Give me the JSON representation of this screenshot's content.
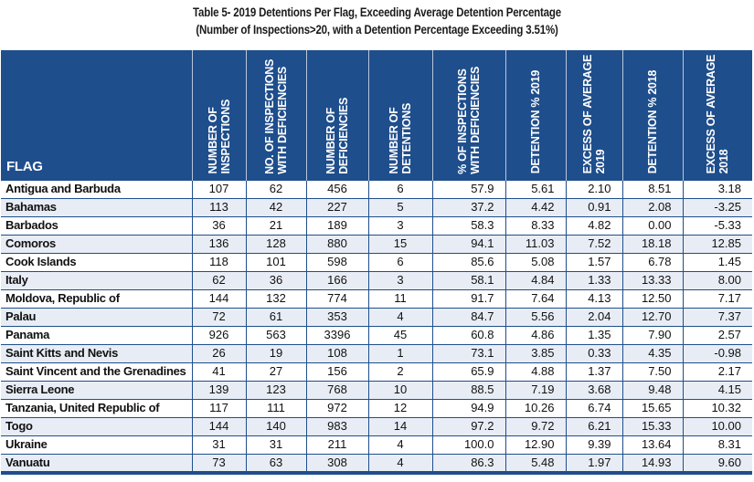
{
  "title_line1": "Table 5- 2019 Detentions Per Flag, Exceeding Average Detention Percentage",
  "title_line2": "(Number of Inspections>20, with a Detention Percentage Exceeding 3.51%)",
  "headers": {
    "flag": "FLAG",
    "inspections": "NUMBER OF\nINSPECTIONS",
    "insp_deficiencies": "NO. OF INSPECTIONS\nWITH DEFICIENCIES",
    "deficiencies": "NUMBER OF\nDEFICIENCIES",
    "detentions": "NUMBER OF\nDETENTIONS",
    "pct_deficiencies": "% OF INSPECTIONS\nWITH DEFICIENCIES",
    "det2019": "DETENTION % 2019",
    "excess2019": "EXCESS OF AVERAGE\n2019",
    "det2018": "DETENTION % 2018",
    "excess2018": "EXCESS OF AVERAGE\n2018"
  },
  "rows": [
    {
      "flag": "Antigua and Barbuda",
      "inspections": "107",
      "insp_deficiencies": "62",
      "deficiencies": "456",
      "detentions": "6",
      "pct_deficiencies": "57.9",
      "det2019": "5.61",
      "excess2019": "2.10",
      "det2018": "8.51",
      "excess2018": "3.18"
    },
    {
      "flag": "Bahamas",
      "inspections": "113",
      "insp_deficiencies": "42",
      "deficiencies": "227",
      "detentions": "5",
      "pct_deficiencies": "37.2",
      "det2019": "4.42",
      "excess2019": "0.91",
      "det2018": "2.08",
      "excess2018": "-3.25"
    },
    {
      "flag": "Barbados",
      "inspections": "36",
      "insp_deficiencies": "21",
      "deficiencies": "189",
      "detentions": "3",
      "pct_deficiencies": "58.3",
      "det2019": "8.33",
      "excess2019": "4.82",
      "det2018": "0.00",
      "excess2018": "-5.33"
    },
    {
      "flag": "Comoros",
      "inspections": "136",
      "insp_deficiencies": "128",
      "deficiencies": "880",
      "detentions": "15",
      "pct_deficiencies": "94.1",
      "det2019": "11.03",
      "excess2019": "7.52",
      "det2018": "18.18",
      "excess2018": "12.85"
    },
    {
      "flag": "Cook Islands",
      "inspections": "118",
      "insp_deficiencies": "101",
      "deficiencies": "598",
      "detentions": "6",
      "pct_deficiencies": "85.6",
      "det2019": "5.08",
      "excess2019": "1.57",
      "det2018": "6.78",
      "excess2018": "1.45"
    },
    {
      "flag": "Italy",
      "inspections": "62",
      "insp_deficiencies": "36",
      "deficiencies": "166",
      "detentions": "3",
      "pct_deficiencies": "58.1",
      "det2019": "4.84",
      "excess2019": "1.33",
      "det2018": "13.33",
      "excess2018": "8.00"
    },
    {
      "flag": "Moldova, Republic of",
      "inspections": "144",
      "insp_deficiencies": "132",
      "deficiencies": "774",
      "detentions": "11",
      "pct_deficiencies": "91.7",
      "det2019": "7.64",
      "excess2019": "4.13",
      "det2018": "12.50",
      "excess2018": "7.17"
    },
    {
      "flag": "Palau",
      "inspections": "72",
      "insp_deficiencies": "61",
      "deficiencies": "353",
      "detentions": "4",
      "pct_deficiencies": "84.7",
      "det2019": "5.56",
      "excess2019": "2.04",
      "det2018": "12.70",
      "excess2018": "7.37"
    },
    {
      "flag": "Panama",
      "inspections": "926",
      "insp_deficiencies": "563",
      "deficiencies": "3396",
      "detentions": "45",
      "pct_deficiencies": "60.8",
      "det2019": "4.86",
      "excess2019": "1.35",
      "det2018": "7.90",
      "excess2018": "2.57"
    },
    {
      "flag": "Saint Kitts and Nevis",
      "inspections": "26",
      "insp_deficiencies": "19",
      "deficiencies": "108",
      "detentions": "1",
      "pct_deficiencies": "73.1",
      "det2019": "3.85",
      "excess2019": "0.33",
      "det2018": "4.35",
      "excess2018": "-0.98"
    },
    {
      "flag": "Saint Vincent and the Grenadines",
      "inspections": "41",
      "insp_deficiencies": "27",
      "deficiencies": "156",
      "detentions": "2",
      "pct_deficiencies": "65.9",
      "det2019": "4.88",
      "excess2019": "1.37",
      "det2018": "7.50",
      "excess2018": "2.17"
    },
    {
      "flag": "Sierra Leone",
      "inspections": "139",
      "insp_deficiencies": "123",
      "deficiencies": "768",
      "detentions": "10",
      "pct_deficiencies": "88.5",
      "det2019": "7.19",
      "excess2019": "3.68",
      "det2018": "9.48",
      "excess2018": "4.15"
    },
    {
      "flag": "Tanzania, United Republic of",
      "inspections": "117",
      "insp_deficiencies": "111",
      "deficiencies": "972",
      "detentions": "12",
      "pct_deficiencies": "94.9",
      "det2019": "10.26",
      "excess2019": "6.74",
      "det2018": "15.65",
      "excess2018": "10.32"
    },
    {
      "flag": "Togo",
      "inspections": "144",
      "insp_deficiencies": "140",
      "deficiencies": "983",
      "detentions": "14",
      "pct_deficiencies": "97.2",
      "det2019": "9.72",
      "excess2019": "6.21",
      "det2018": "15.33",
      "excess2018": "10.00"
    },
    {
      "flag": "Ukraine",
      "inspections": "31",
      "insp_deficiencies": "31",
      "deficiencies": "211",
      "detentions": "4",
      "pct_deficiencies": "100.0",
      "det2019": "12.90",
      "excess2019": "9.39",
      "det2018": "13.64",
      "excess2018": "8.31"
    },
    {
      "flag": "Vanuatu",
      "inspections": "73",
      "insp_deficiencies": "63",
      "deficiencies": "308",
      "detentions": "4",
      "pct_deficiencies": "86.3",
      "det2019": "5.48",
      "excess2019": "1.97",
      "det2018": "14.93",
      "excess2018": "9.60"
    }
  ]
}
